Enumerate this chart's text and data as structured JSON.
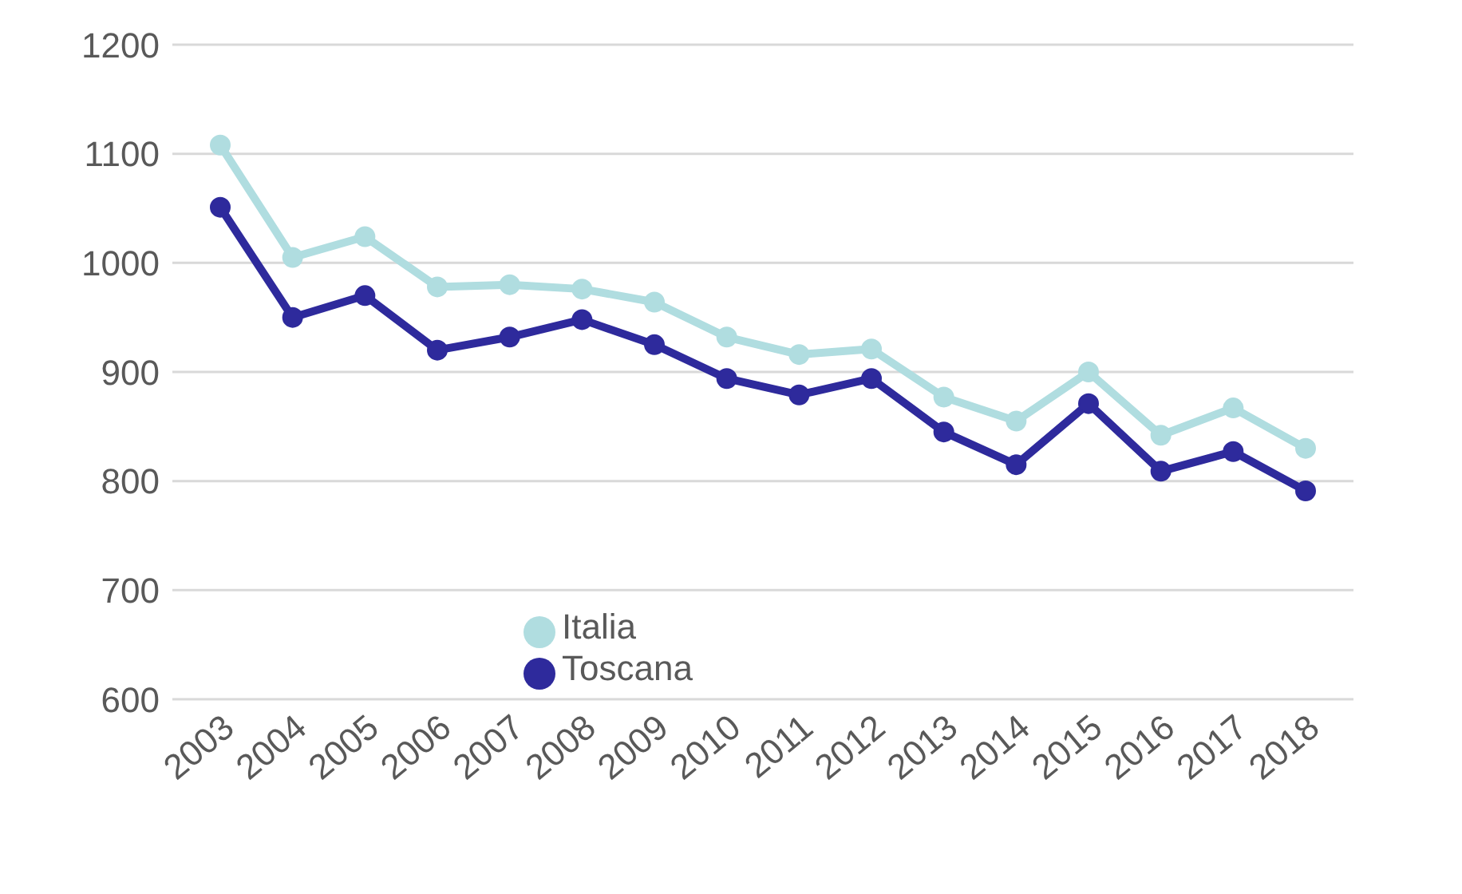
{
  "chart_data": {
    "type": "line",
    "categories": [
      "2003",
      "2004",
      "2005",
      "2006",
      "2007",
      "2008",
      "2009",
      "2010",
      "2011",
      "2012",
      "2013",
      "2014",
      "2015",
      "2016",
      "2017",
      "2018"
    ],
    "series": [
      {
        "name": "Italia",
        "color": "#b0dde0",
        "values": [
          1108,
          1005,
          1024,
          978,
          980,
          976,
          964,
          932,
          916,
          921,
          877,
          855,
          900,
          842,
          867,
          830
        ]
      },
      {
        "name": "Toscana",
        "color": "#2e2a9c",
        "values": [
          1051,
          950,
          970,
          920,
          932,
          948,
          925,
          894,
          879,
          894,
          845,
          815,
          871,
          809,
          827,
          791
        ]
      }
    ],
    "ylim": [
      600,
      1200
    ],
    "yticks": [
      600,
      700,
      800,
      900,
      1000,
      1100,
      1200
    ],
    "grid": "y",
    "legend": "bottom",
    "marker": "circle",
    "line_style": "solid"
  }
}
